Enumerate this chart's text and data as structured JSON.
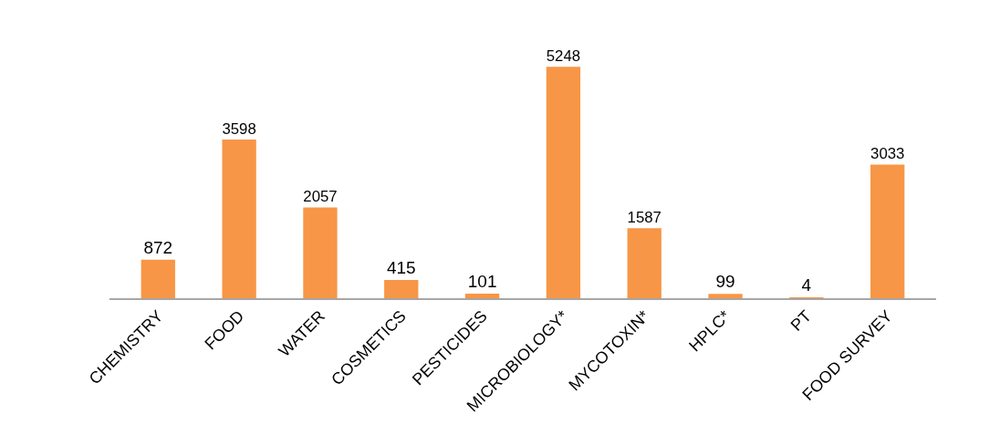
{
  "chart_data": {
    "type": "bar",
    "categories": [
      "CHEMISTRY",
      "FOOD",
      "WATER",
      "COSMETICS",
      "PESTICIDES",
      "MICROBIOLOGY*",
      "MYCOTOXIN*",
      "HPLC*",
      "PT",
      "FOOD SURVEY"
    ],
    "values": [
      872,
      3598,
      2057,
      415,
      101,
      5248,
      1587,
      99,
      4,
      3033
    ],
    "color": "#f79646",
    "data_labels": true,
    "tick_labels": "x"
  }
}
